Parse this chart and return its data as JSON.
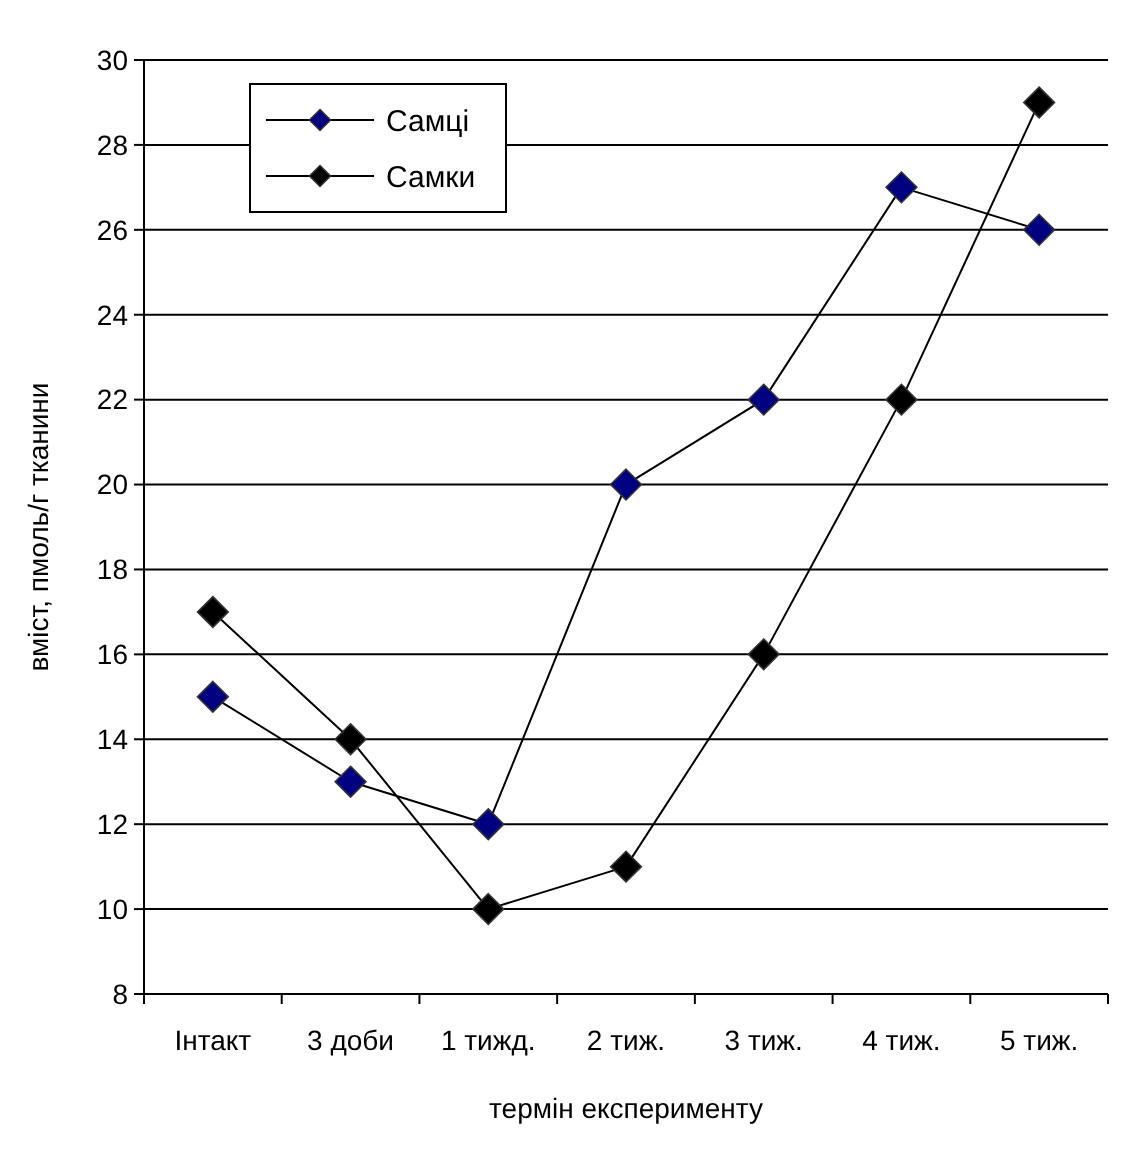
{
  "chart_data": {
    "type": "line",
    "xlabel": "термін експерименту",
    "ylabel": "вміст, пмоль/г тканини",
    "categories": [
      "Інтакт",
      "3 доби",
      "1 тижд.",
      "2 тиж.",
      "3 тиж.",
      "4 тиж.",
      "5 тиж."
    ],
    "series": [
      {
        "name": "Самці",
        "color": "#000080",
        "values": [
          15,
          13,
          12,
          20,
          22,
          27,
          26
        ]
      },
      {
        "name": "Самки",
        "color": "#000000",
        "values": [
          17,
          14,
          10,
          11,
          16,
          22,
          29
        ]
      }
    ],
    "ylim": [
      8,
      30
    ],
    "yticks": [
      8,
      10,
      12,
      14,
      16,
      18,
      20,
      22,
      24,
      26,
      28,
      30
    ],
    "grid": "y",
    "legend": "top left",
    "marker": "diamond",
    "line_style": "solid"
  }
}
